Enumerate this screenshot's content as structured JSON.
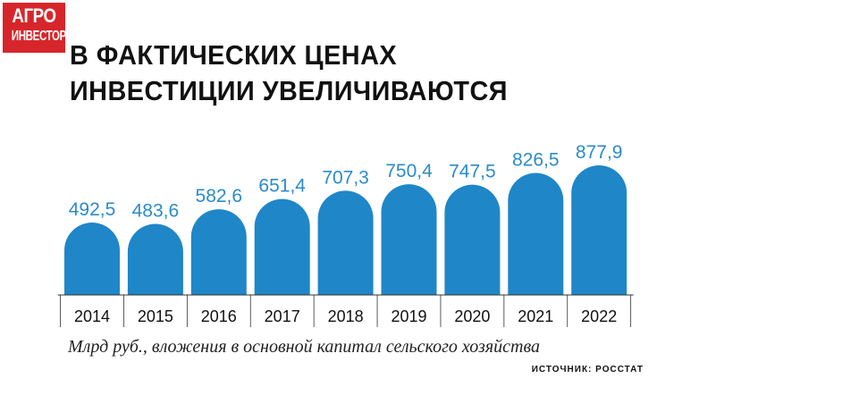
{
  "logo": {
    "line1": "АГРО",
    "line2": "ИНВЕСТОР"
  },
  "title_line1": "В ФАКТИЧЕСКИХ ЦЕНАХ",
  "title_line2": "ИНВЕСТИЦИИ УВЕЛИЧИВАЮТСЯ",
  "caption": "Млрд руб., вложения в основной капитал сельского хозяйства",
  "source": "ИСТОЧНИК: РОССТАТ",
  "colors": {
    "bar": "#1f86c8",
    "data_label": "#2b8bcb",
    "logo_bg": "#d7262b"
  },
  "chart_data": {
    "type": "bar",
    "categories": [
      "2014",
      "2015",
      "2016",
      "2017",
      "2018",
      "2019",
      "2020",
      "2021",
      "2022"
    ],
    "values": [
      492.5,
      483.6,
      582.6,
      651.4,
      707.3,
      750.4,
      747.5,
      826.5,
      877.9
    ],
    "data_labels": [
      "492,5",
      "483,6",
      "582,6",
      "651,4",
      "707,3",
      "750,4",
      "747,5",
      "826,5",
      "877,9"
    ],
    "title": "В ФАКТИЧЕСКИХ ЦЕНАХ ИНВЕСТИЦИИ УВЕЛИЧИВАЮТСЯ",
    "ylabel": "Млрд руб.",
    "grid": false,
    "legend": "none"
  }
}
